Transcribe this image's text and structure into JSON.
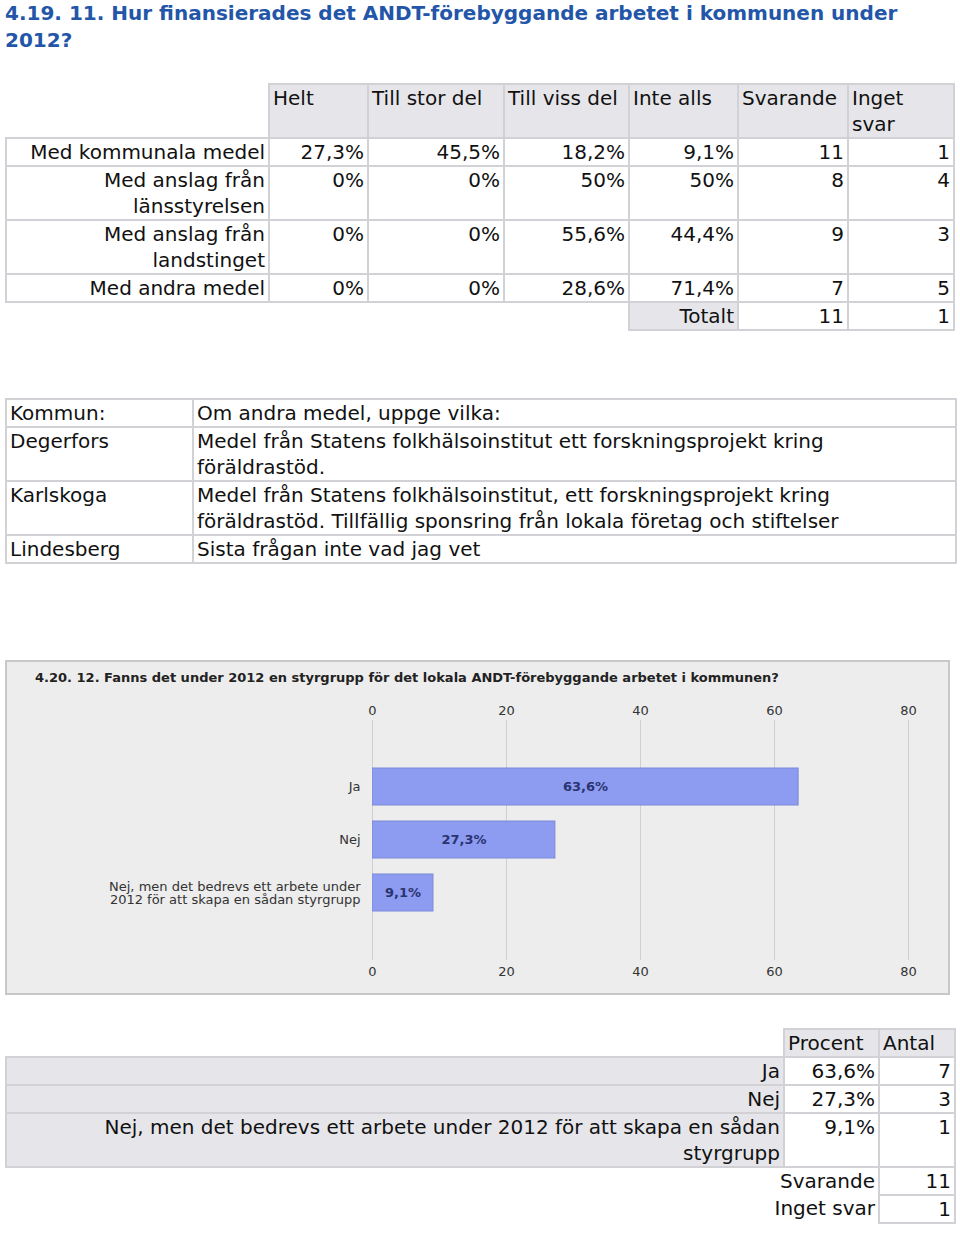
{
  "heading": "4.19. 11. Hur finansierades det ANDT-förebyggande arbetet i kommunen under 2012?",
  "funding_table": {
    "columns": [
      "Helt",
      "Till stor del",
      "Till viss del",
      "Inte alls",
      "Svarande",
      "Inget svar"
    ],
    "rows": [
      [
        "Med kommunala medel",
        "27,3%",
        "45,5%",
        "18,2%",
        "9,1%",
        "11",
        "1"
      ],
      [
        "Med anslag från länsstyrelsen",
        "0%",
        "0%",
        "50%",
        "50%",
        "8",
        "4"
      ],
      [
        "Med anslag från landstinget",
        "0%",
        "0%",
        "55,6%",
        "44,4%",
        "9",
        "3"
      ],
      [
        "Med andra medel",
        "0%",
        "0%",
        "28,6%",
        "71,4%",
        "7",
        "5"
      ]
    ],
    "total": {
      "label": "Totalt",
      "values": [
        "11",
        "1"
      ]
    }
  },
  "other_funds_table": {
    "columns": [
      "Kommun:",
      "Om andra medel, uppge vilka:"
    ],
    "rows": [
      [
        "Degerfors",
        "Medel från Statens folkhälsoinstitut ett forskningsprojekt kring föräldrastöd."
      ],
      [
        "Karlskoga",
        "Medel från Statens folkhälsoinstitut, ett forskningsprojekt kring föräldrastöd. Tillfällig sponsring från lokala företag och stiftelser"
      ],
      [
        "Lindesberg",
        "Sista frågan inte vad jag vet"
      ]
    ]
  },
  "chart_data": {
    "type": "bar",
    "title": "4.20. 12. Fanns det under 2012 en styrgrupp för det lokala ANDT-förebyggande arbetet i kommunen?",
    "categories": [
      "Ja",
      "Nej",
      "Nej, men det bedrevs ett arbete under 2012 för att skapa en sådan styrgrupp"
    ],
    "values": [
      63.6,
      27.3,
      9.1
    ],
    "value_labels": [
      "63,6%",
      "27,3%",
      "9,1%"
    ],
    "color": "#8d9bf1",
    "orientation": "horizontal",
    "data_labels": true,
    "grid": true,
    "xlim": [
      0,
      80
    ],
    "xticks": [
      0,
      20,
      40,
      60,
      80
    ]
  },
  "styrgrupp_table": {
    "columns": [
      "Procent",
      "Antal"
    ],
    "rows": [
      [
        "Ja",
        "63,6%",
        "7"
      ],
      [
        "Nej",
        "27,3%",
        "3"
      ],
      [
        "Nej, men det bedrevs ett arbete under 2012 för att skapa en sådan styrgrupp",
        "9,1%",
        "1"
      ]
    ],
    "summary": [
      [
        "Svarande",
        "11"
      ],
      [
        "Inget svar",
        "1"
      ]
    ]
  }
}
